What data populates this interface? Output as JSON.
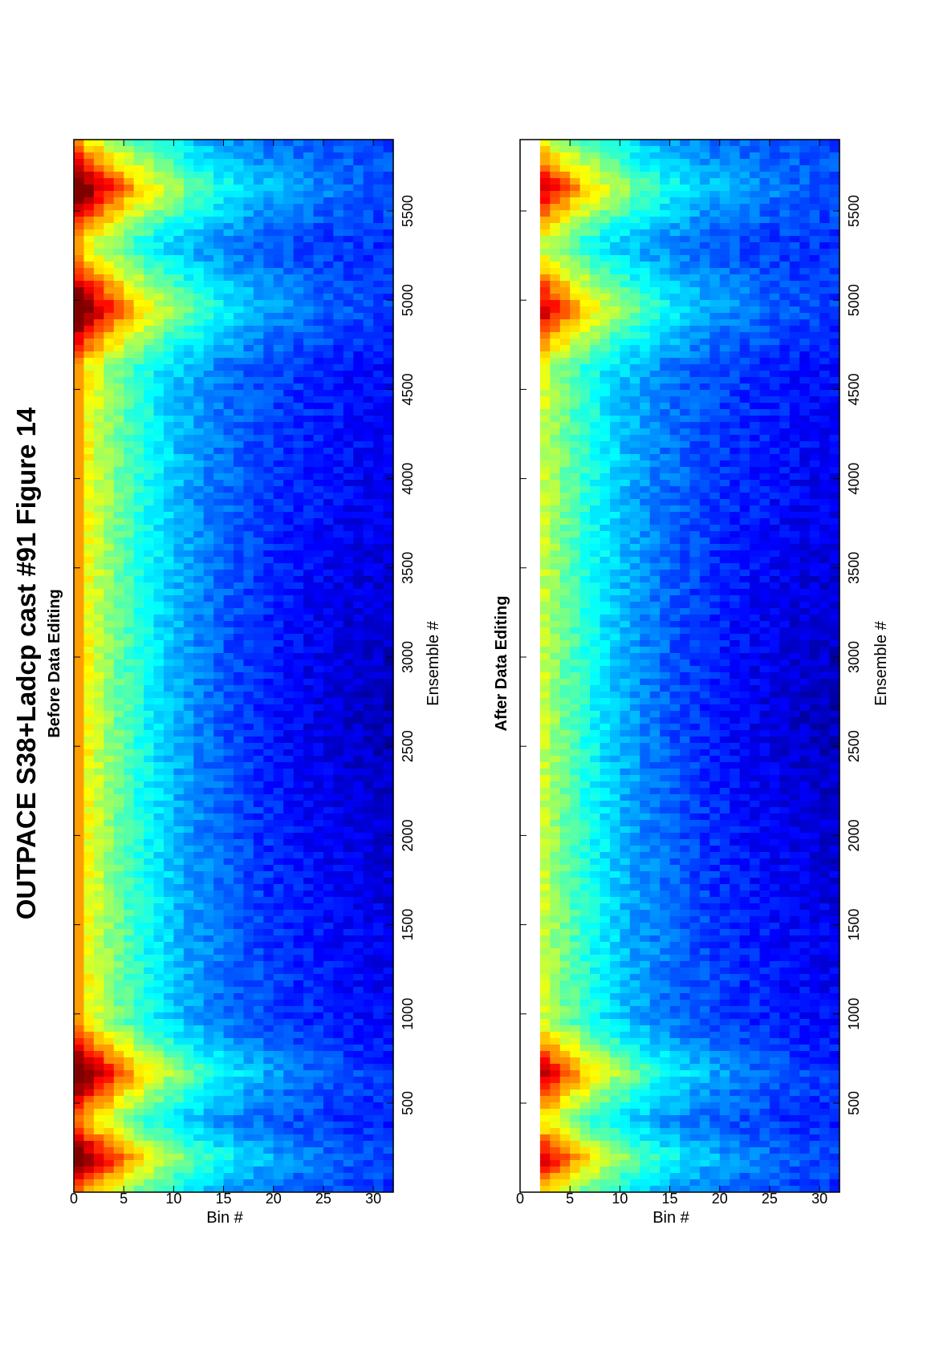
{
  "figure": {
    "title": "OUTPACE S38+Ladcp cast #91  Figure 14"
  },
  "chart_data": [
    {
      "type": "heatmap",
      "title": "Before Data Editing",
      "xlabel": "Ensemble #",
      "ylabel": "Bin #",
      "xlim": [
        1,
        5900
      ],
      "ylim": [
        0,
        32
      ],
      "x_ticks": [
        500,
        1000,
        1500,
        2000,
        2500,
        3000,
        3500,
        4000,
        4500,
        5000,
        5500
      ],
      "x_tick_labels": [
        "500",
        "1000",
        "1500",
        "2000",
        "2500",
        "3000",
        "3500",
        "4000",
        "4500",
        "5000",
        "5500"
      ],
      "y_ticks": [
        0,
        5,
        10,
        15,
        20,
        25,
        30
      ],
      "y_tick_labels": [
        "0",
        "5",
        "10",
        "15",
        "20",
        "25",
        "30"
      ],
      "colormap": "jet",
      "grid": false,
      "notes_values": {
        "high_intensity_ensembles": [
          [
            50,
            330
          ],
          [
            480,
            850
          ],
          [
            4750,
            5150
          ],
          [
            5450,
            5800
          ]
        ],
        "rows_near_surface_high": [
          1,
          2,
          3
        ]
      }
    },
    {
      "type": "heatmap",
      "title": "After Data Editing",
      "xlabel": "Ensemble #",
      "ylabel": "Bin #",
      "xlim": [
        1,
        5900
      ],
      "ylim": [
        0,
        32
      ],
      "x_ticks": [
        500,
        1000,
        1500,
        2000,
        2500,
        3000,
        3500,
        4000,
        4500,
        5000,
        5500
      ],
      "x_tick_labels": [
        "500",
        "1000",
        "1500",
        "2000",
        "2500",
        "3000",
        "3500",
        "4000",
        "4500",
        "5000",
        "5500"
      ],
      "y_ticks": [
        0,
        5,
        10,
        15,
        20,
        25,
        30
      ],
      "y_tick_labels": [
        "0",
        "5",
        "10",
        "15",
        "20",
        "25",
        "30"
      ],
      "colormap": "jet",
      "grid": false,
      "masked_bins": [
        0,
        1
      ]
    }
  ]
}
